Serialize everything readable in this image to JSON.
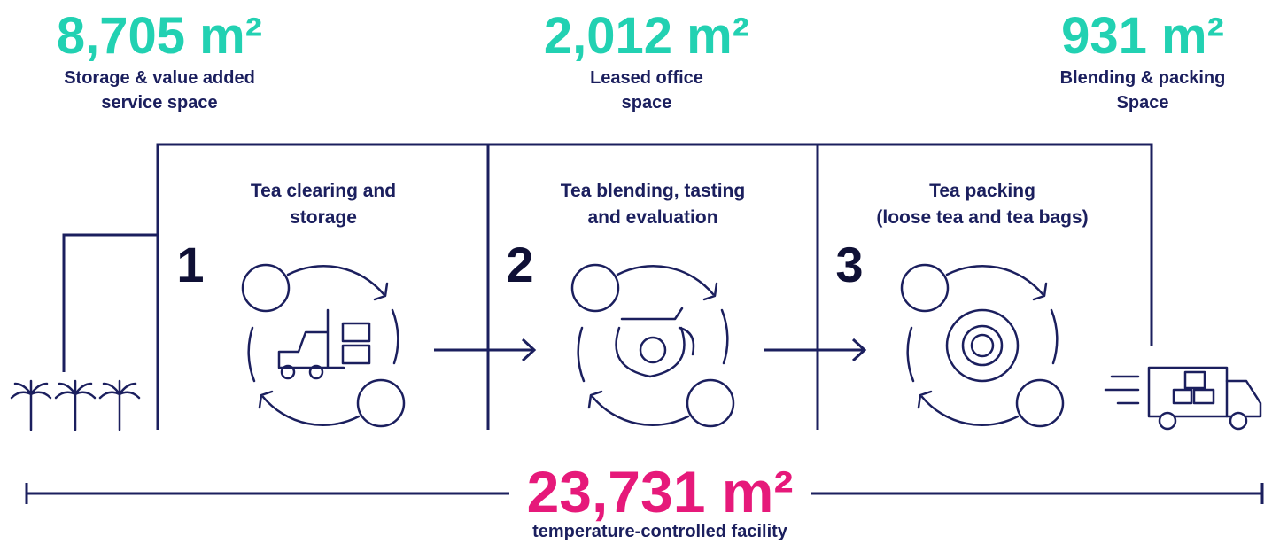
{
  "stats": [
    {
      "value": "8,705 m²",
      "label": [
        "Storage & value added",
        "service space"
      ]
    },
    {
      "value": "2,012 m²",
      "label": [
        "Leased office",
        "space"
      ]
    },
    {
      "value": "931 m²",
      "label": [
        "Blending & packing",
        "Space"
      ]
    }
  ],
  "stages": [
    {
      "number": "1",
      "title": [
        "Tea clearing and",
        "storage"
      ]
    },
    {
      "number": "2",
      "title": [
        "Tea blending, tasting",
        "and evaluation"
      ]
    },
    {
      "number": "3",
      "title": [
        "Tea packing",
        "(loose tea and tea bags)"
      ]
    }
  ],
  "total": {
    "value": "23,731 m²",
    "label": "temperature-controlled facility"
  }
}
